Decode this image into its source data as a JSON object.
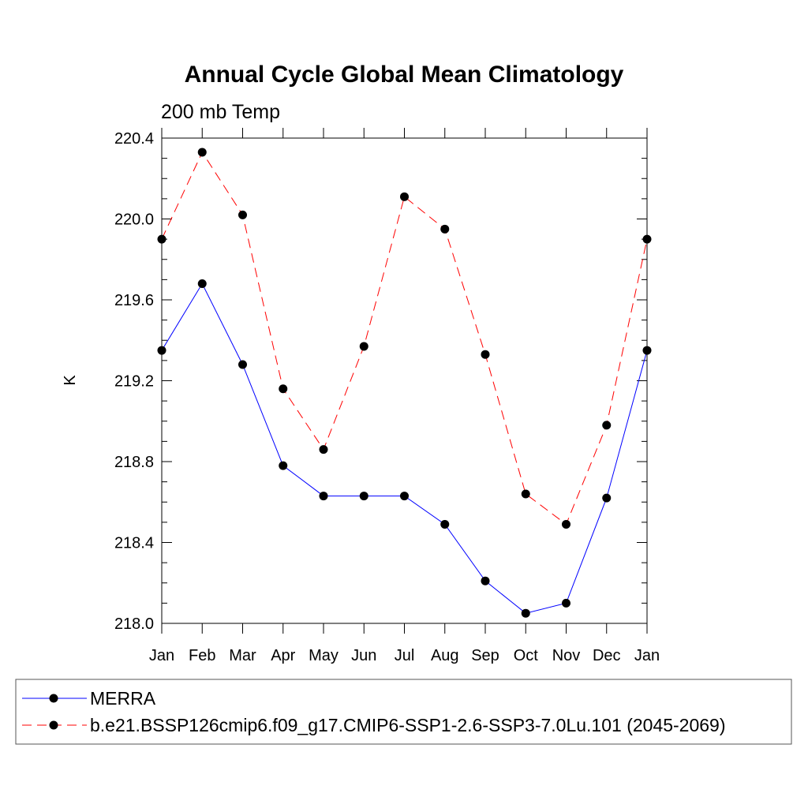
{
  "chart_data": {
    "type": "line",
    "title": "Annual Cycle Global Mean Climatology",
    "subtitle": "200 mb Temp",
    "ylabel": "K",
    "xlabel": "",
    "categories": [
      "Jan",
      "Feb",
      "Mar",
      "Apr",
      "May",
      "Jun",
      "Jul",
      "Aug",
      "Sep",
      "Oct",
      "Nov",
      "Dec",
      "Jan"
    ],
    "ylim": [
      218.0,
      220.4
    ],
    "yticks": [
      "218.0",
      "218.4",
      "218.8",
      "219.2",
      "219.6",
      "220.0",
      "220.4"
    ],
    "series": [
      {
        "name": "MERRA",
        "color": "#0000ff",
        "line_style": "solid",
        "marker": "filled-circle",
        "values": [
          219.35,
          219.68,
          219.28,
          218.78,
          218.63,
          218.63,
          218.63,
          218.49,
          218.21,
          218.05,
          218.1,
          218.62,
          219.35
        ]
      },
      {
        "name": "b.e21.BSSP126cmip6.f09_g17.CMIP6-SSP1-2.6-SSP3-7.0Lu.101 (2045-2069)",
        "color": "#ff0000",
        "line_style": "dashed",
        "marker": "filled-circle",
        "values": [
          219.9,
          220.33,
          220.02,
          219.16,
          218.86,
          219.37,
          220.11,
          219.95,
          219.33,
          218.64,
          218.49,
          218.98,
          219.9
        ]
      }
    ],
    "grid": false,
    "legend_position": "bottom"
  }
}
